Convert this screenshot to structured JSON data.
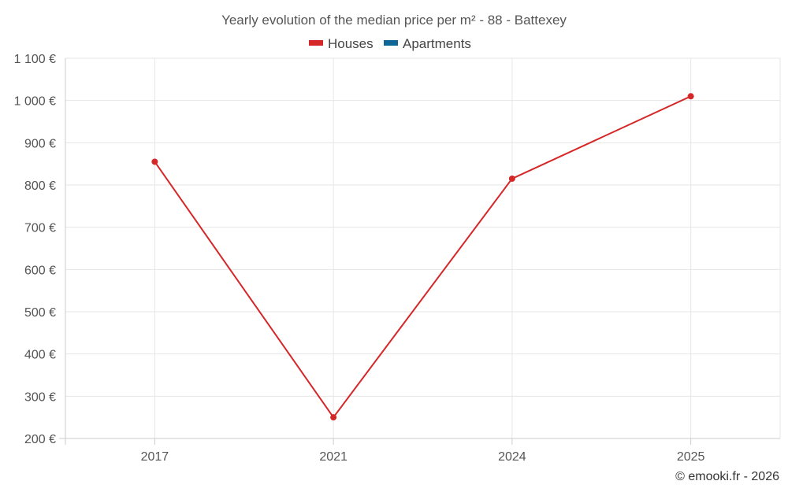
{
  "chart_data": {
    "type": "line",
    "title": "Yearly evolution of the median price per m² - 88 - Battexey",
    "categories": [
      "2017",
      "2021",
      "2024",
      "2025"
    ],
    "series": [
      {
        "name": "Houses",
        "color": "#d62728",
        "values": [
          855,
          250,
          815,
          1010
        ]
      },
      {
        "name": "Apartments",
        "color": "#0e6696",
        "values": [
          null,
          null,
          null,
          null
        ]
      }
    ],
    "y_ticks": [
      200,
      300,
      400,
      500,
      600,
      700,
      800,
      900,
      1000,
      1100
    ],
    "y_tick_labels": [
      "200 €",
      "300 €",
      "400 €",
      "500 €",
      "600 €",
      "700 €",
      "800 €",
      "900 €",
      "1 000 €",
      "1 100 €"
    ],
    "ylim": [
      200,
      1100
    ],
    "xlabel": "",
    "ylabel": "",
    "grid": true,
    "legend_position": "top-center"
  },
  "credit": "© emooki.fr - 2026"
}
